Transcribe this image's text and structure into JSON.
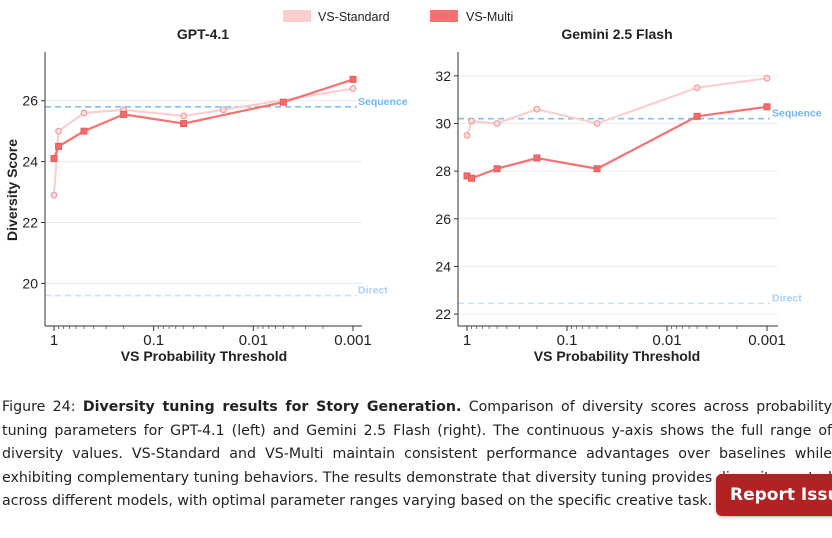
{
  "legend": [
    {
      "name": "VS-Standard",
      "color": "#fccfcf"
    },
    {
      "name": "VS-Multi",
      "color": "#f87171"
    }
  ],
  "colors": {
    "baseline_sequence": "#7fbff5",
    "baseline_direct": "#c6e3fb",
    "text_sequence": "#6fb6f2",
    "text_direct": "#a8d3f7"
  },
  "chart_data": [
    {
      "type": "line",
      "title": "GPT-4.1",
      "xlabel": "VS Probability Threshold",
      "ylabel": "Diversity Score",
      "x_scale": "log-reversed",
      "xticks": [
        1,
        0.1,
        0.01,
        0.001
      ],
      "xtick_labels": [
        "1",
        "0.1",
        "0.01",
        "0.001"
      ],
      "yticks": [
        20,
        22,
        24,
        26
      ],
      "ylim": [
        18.6,
        27.6
      ],
      "grid": "horizontal",
      "series": [
        {
          "name": "VS-Standard",
          "x": [
            1.0,
            0.9,
            0.5,
            0.2,
            0.05,
            0.02,
            0.001
          ],
          "y": [
            22.9,
            25.0,
            25.6,
            25.7,
            25.5,
            25.7,
            26.4
          ]
        },
        {
          "name": "VS-Multi",
          "x": [
            1.0,
            0.9,
            0.5,
            0.2,
            0.05,
            0.005,
            0.001
          ],
          "y": [
            24.1,
            24.5,
            25.0,
            25.55,
            25.25,
            25.95,
            26.7
          ]
        }
      ],
      "baselines": [
        {
          "name": "Sequence",
          "y": 25.8
        },
        {
          "name": "Direct",
          "y": 19.6
        }
      ]
    },
    {
      "type": "line",
      "title": "Gemini 2.5 Flash",
      "xlabel": "VS Probability Threshold",
      "ylabel": "",
      "x_scale": "log-reversed",
      "xticks": [
        1,
        0.1,
        0.01,
        0.001
      ],
      "xtick_labels": [
        "1",
        "0.1",
        "0.01",
        "0.001"
      ],
      "yticks": [
        22,
        24,
        26,
        28,
        30,
        32
      ],
      "ylim": [
        21.5,
        33.0
      ],
      "grid": "horizontal",
      "series": [
        {
          "name": "VS-Standard",
          "x": [
            1.0,
            0.9,
            0.5,
            0.2,
            0.05,
            0.005,
            0.001
          ],
          "y": [
            29.5,
            30.1,
            30.0,
            30.6,
            30.0,
            31.5,
            31.9
          ]
        },
        {
          "name": "VS-Multi",
          "x": [
            1.0,
            0.9,
            0.5,
            0.2,
            0.05,
            0.005,
            0.001
          ],
          "y": [
            27.8,
            27.7,
            28.1,
            28.55,
            28.1,
            30.3,
            30.7
          ]
        }
      ],
      "baselines": [
        {
          "name": "Sequence",
          "y": 30.2
        },
        {
          "name": "Direct",
          "y": 22.45
        }
      ]
    }
  ],
  "caption": {
    "label": "Figure 24:",
    "title": "Diversity tuning results for Story Generation.",
    "body": "Comparison of diversity scores across probability tuning parameters for GPT-4.1 (left) and Gemini 2.5 Flash (right). The continuous y-axis shows the full range of diversity values. VS-Standard and VS-Multi maintain consistent performance advantages over baselines while exhibiting complementary tuning behaviors. The results demonstrate that diversity tuning provides diversity control across different models, with optimal parameter ranges varying based on the specific creative task."
  },
  "report_button": {
    "label": "Report Issue"
  }
}
